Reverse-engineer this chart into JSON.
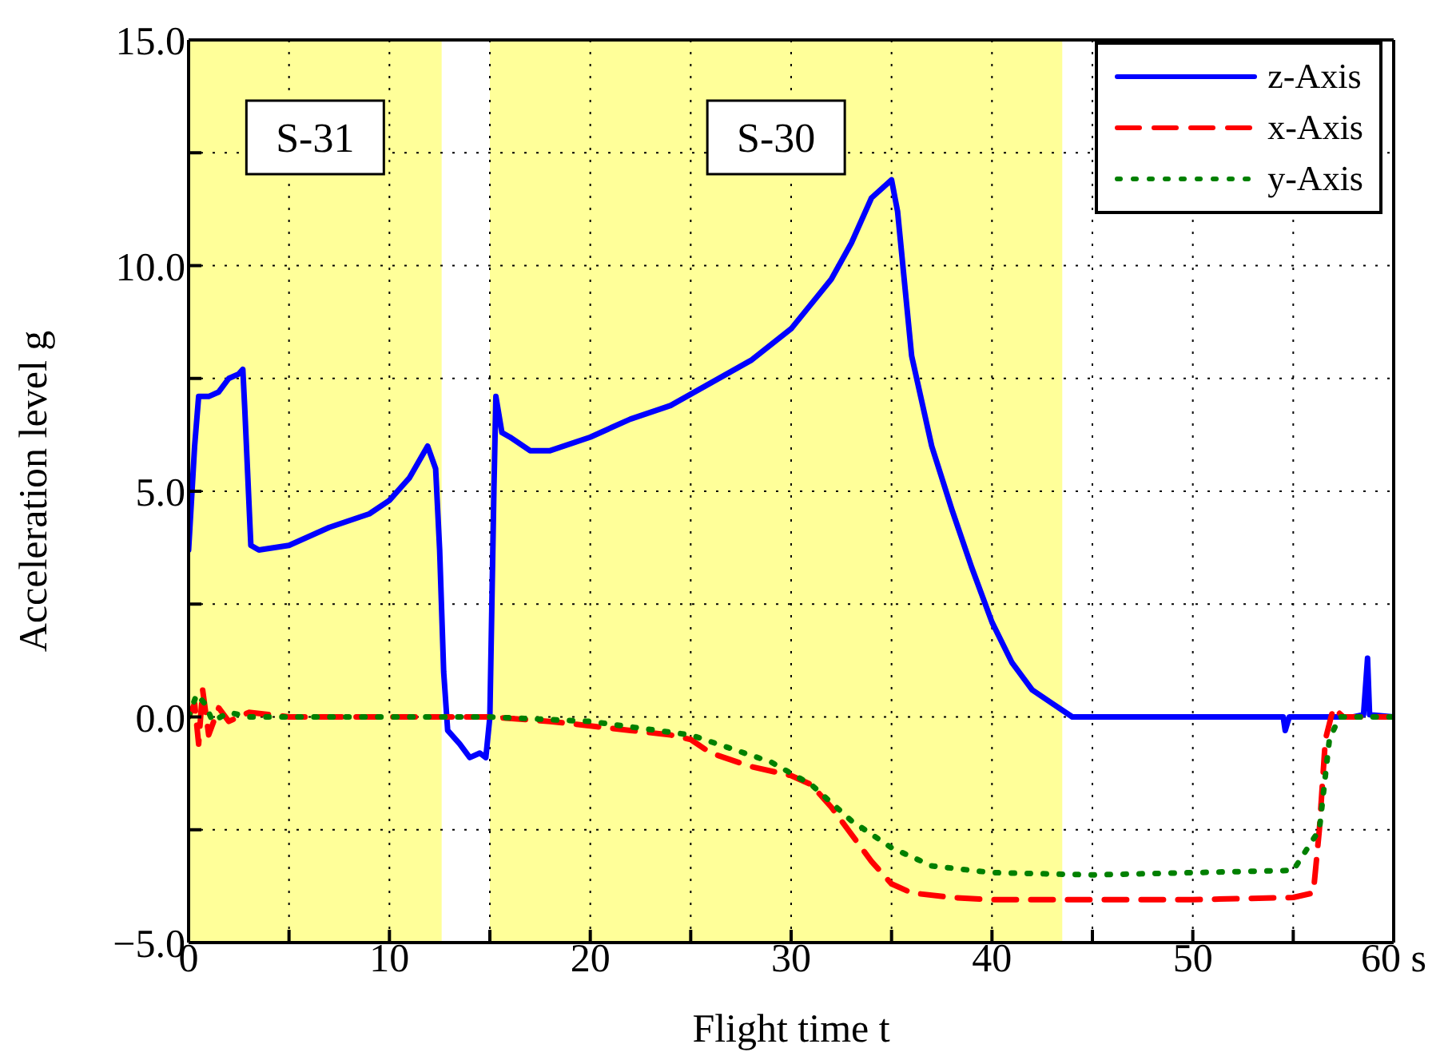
{
  "chart_data": {
    "type": "line",
    "xlabel": "Flight time  t",
    "ylabel": "Acceleration level  g",
    "xlim": [
      0,
      60
    ],
    "xticks": [
      0,
      {
        "value": 5,
        "label": null
      },
      10,
      {
        "value": 15,
        "label": null
      },
      20,
      {
        "value": 25,
        "label": null
      },
      30,
      {
        "value": 35,
        "label": null
      },
      40,
      {
        "value": 45,
        "label": null
      },
      50,
      {
        "value": 55,
        "label": null
      },
      {
        "value": 60,
        "label": "60 s"
      }
    ],
    "ylim": [
      -5,
      15
    ],
    "yticks": [
      {
        "value": -5,
        "label": "−5.0"
      },
      {
        "value": -2.5,
        "label": null
      },
      {
        "value": 0,
        "label": "0.0"
      },
      {
        "value": 2.5,
        "label": null
      },
      {
        "value": 5,
        "label": "5.0"
      },
      {
        "value": 7.5,
        "label": null
      },
      {
        "value": 10,
        "label": "10.0"
      },
      {
        "value": 12.5,
        "label": null
      },
      {
        "value": 15,
        "label": "15.0"
      }
    ],
    "grid": true,
    "legend": "top right",
    "bands": [
      {
        "axis": "x",
        "from": 0,
        "to": 12.6,
        "label": "S-31",
        "color": "#ffff99"
      },
      {
        "axis": "x",
        "from": 15,
        "to": 43.5,
        "label": "S-30",
        "color": "#ffff99"
      }
    ],
    "series": [
      {
        "name": "z-Axis",
        "color": "#0000ff",
        "line_style": "solid",
        "x": [
          0,
          0.3,
          0.5,
          1,
          1.5,
          2,
          2.5,
          2.7,
          2.8,
          3.1,
          3.5,
          5,
          7,
          9,
          10,
          11,
          11.9,
          12.3,
          12.5,
          12.7,
          12.9,
          13.5,
          14,
          14.5,
          14.8,
          15,
          15.2,
          15.3,
          15.6,
          16,
          17,
          18,
          20,
          22,
          24,
          26,
          28,
          30,
          32,
          33,
          34,
          35,
          35.3,
          36,
          37,
          38,
          39,
          40,
          41,
          42,
          43,
          44,
          45,
          50,
          54.5,
          54.6,
          54.8,
          58,
          58.5,
          58.7,
          58.8,
          60
        ],
        "values": [
          3.7,
          6,
          7.1,
          7.1,
          7.2,
          7.5,
          7.6,
          7.7,
          6.8,
          3.8,
          3.7,
          3.8,
          4.2,
          4.5,
          4.8,
          5.3,
          6,
          5.5,
          3.7,
          1,
          -0.3,
          -0.6,
          -0.9,
          -0.8,
          -0.9,
          0,
          5,
          7.1,
          6.3,
          6.2,
          5.9,
          5.9,
          6.2,
          6.6,
          6.9,
          7.4,
          7.9,
          8.6,
          9.7,
          10.5,
          11.5,
          11.9,
          11.2,
          8,
          6,
          4.6,
          3.3,
          2.1,
          1.2,
          0.6,
          0.3,
          0,
          0,
          0,
          0,
          -0.3,
          0,
          0,
          0.05,
          1.3,
          0.05,
          0
        ]
      },
      {
        "name": "x-Axis",
        "color": "#ff0000",
        "line_style": "dashed",
        "x": [
          0,
          0.3,
          0.5,
          0.7,
          1,
          1.5,
          2,
          3,
          5,
          10,
          15,
          18,
          20,
          22,
          24,
          25,
          26,
          28,
          30,
          31,
          32,
          33,
          34,
          35,
          36,
          38,
          40,
          45,
          50,
          55,
          56,
          56.3,
          56.6,
          57,
          57.5,
          60
        ],
        "values": [
          0,
          0.3,
          -0.6,
          0.6,
          -0.4,
          0.2,
          -0.1,
          0.1,
          0,
          0,
          0,
          -0.1,
          -0.2,
          -0.3,
          -0.4,
          -0.5,
          -0.8,
          -1.1,
          -1.3,
          -1.5,
          -2,
          -2.6,
          -3.2,
          -3.7,
          -3.9,
          -4,
          -4.05,
          -4.05,
          -4.05,
          -4,
          -3.9,
          -2.5,
          -0.5,
          0.2,
          0,
          0
        ]
      },
      {
        "name": "y-Axis",
        "color": "#008000",
        "line_style": "dotted",
        "x": [
          0,
          0.4,
          0.8,
          1.2,
          2,
          3,
          10,
          15,
          20,
          25,
          27,
          29,
          31,
          33,
          35,
          37,
          40,
          45,
          50,
          55,
          56.3,
          56.8,
          57.3,
          60
        ],
        "values": [
          0,
          0.5,
          0.3,
          -0.1,
          0.1,
          0,
          0,
          0,
          -0.1,
          -0.4,
          -0.7,
          -1,
          -1.5,
          -2.3,
          -2.9,
          -3.3,
          -3.45,
          -3.5,
          -3.45,
          -3.4,
          -2.5,
          -0.5,
          0,
          0
        ]
      }
    ]
  }
}
